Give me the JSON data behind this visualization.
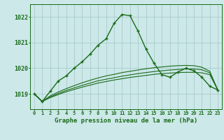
{
  "title": "Graphe pression niveau de la mer (hPa)",
  "background_color": "#cce8e8",
  "grid_color": "#aacccc",
  "line_color": "#1a6b1a",
  "x_labels": [
    "0",
    "1",
    "2",
    "3",
    "4",
    "5",
    "6",
    "7",
    "8",
    "9",
    "10",
    "11",
    "12",
    "13",
    "14",
    "15",
    "16",
    "17",
    "18",
    "19",
    "20",
    "21",
    "22",
    "23"
  ],
  "ylim": [
    1018.4,
    1022.5
  ],
  "yticks": [
    1019,
    1020,
    1021,
    1022
  ],
  "main_series": [
    1019.0,
    1018.7,
    1019.1,
    1019.5,
    1019.7,
    1020.0,
    1020.25,
    1020.55,
    1020.9,
    1021.15,
    1021.75,
    1022.1,
    1022.05,
    1021.45,
    1020.75,
    1020.2,
    1019.75,
    1019.65,
    1019.85,
    1020.0,
    1019.9,
    1019.65,
    1019.3,
    1019.15
  ],
  "line2": [
    1019.0,
    1018.7,
    1018.85,
    1018.97,
    1019.08,
    1019.17,
    1019.26,
    1019.34,
    1019.42,
    1019.48,
    1019.54,
    1019.59,
    1019.64,
    1019.68,
    1019.72,
    1019.76,
    1019.79,
    1019.81,
    1019.83,
    1019.84,
    1019.84,
    1019.82,
    1019.75,
    1019.15
  ],
  "line3": [
    1019.0,
    1018.7,
    1018.88,
    1019.01,
    1019.13,
    1019.23,
    1019.33,
    1019.42,
    1019.51,
    1019.57,
    1019.63,
    1019.69,
    1019.74,
    1019.79,
    1019.83,
    1019.87,
    1019.9,
    1019.93,
    1019.95,
    1019.97,
    1019.97,
    1019.94,
    1019.82,
    1019.15
  ],
  "line4": [
    1019.0,
    1018.7,
    1018.92,
    1019.07,
    1019.2,
    1019.32,
    1019.43,
    1019.53,
    1019.62,
    1019.7,
    1019.76,
    1019.83,
    1019.88,
    1019.93,
    1019.98,
    1020.02,
    1020.05,
    1020.08,
    1020.1,
    1020.11,
    1020.1,
    1020.04,
    1019.88,
    1019.15
  ]
}
